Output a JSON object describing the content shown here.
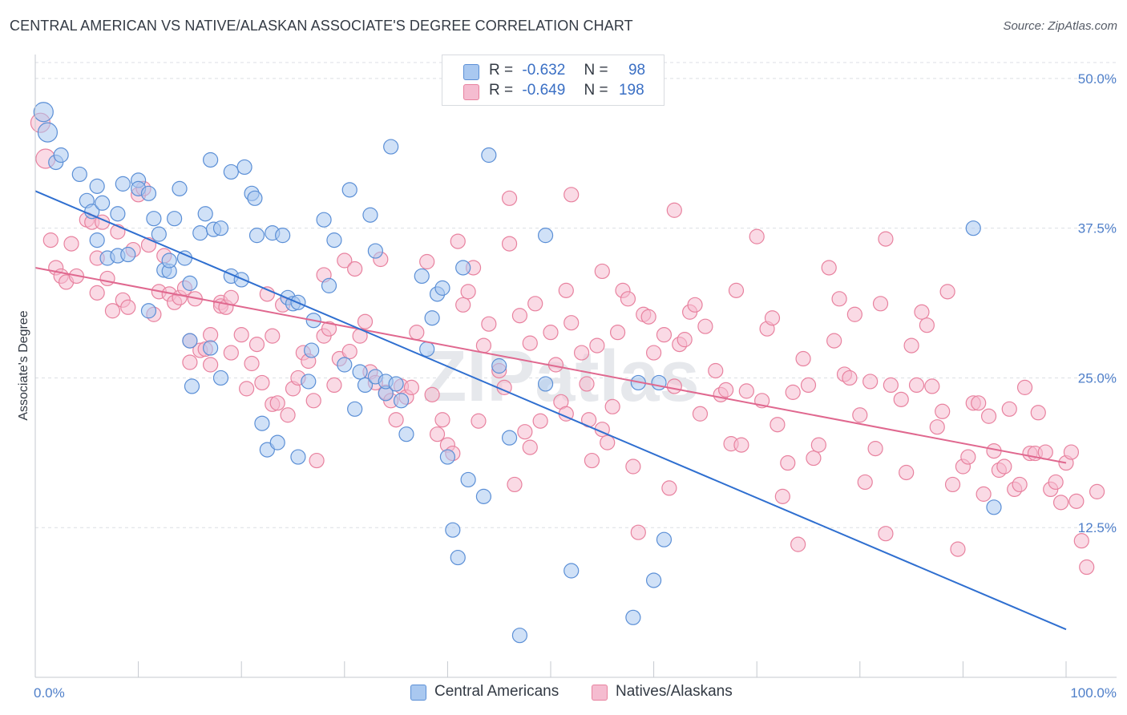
{
  "title": "CENTRAL AMERICAN VS NATIVE/ALASKAN ASSOCIATE'S DEGREE CORRELATION CHART",
  "source": "Source: ZipAtlas.com",
  "watermark": "ZIPatlas",
  "legend": {
    "r_label": "R =",
    "n_label": "N =",
    "series1_r": "-0.632",
    "series1_n": "98",
    "series2_r": "-0.649",
    "series2_n": "198"
  },
  "bottom_legend": {
    "series1": "Central Americans",
    "series2": "Natives/Alaskans"
  },
  "colors": {
    "blue_fill": "#a9c8f0",
    "blue_stroke": "#5b8fd6",
    "blue_line": "#2f6fd0",
    "pink_fill": "#f5bcd0",
    "pink_stroke": "#e8829f",
    "pink_line": "#e0688f",
    "grid": "#dcdfe4",
    "tick_text": "#4f7fc9"
  },
  "chart_data": {
    "type": "scatter",
    "title": "CENTRAL AMERICAN VS NATIVE/ALASKAN ASSOCIATE'S DEGREE CORRELATION CHART",
    "xlabel": "",
    "ylabel": "Associate's Degree",
    "xlim": [
      0,
      100
    ],
    "ylim": [
      0,
      52
    ],
    "x_tick_labels": [
      "0.0%",
      "100.0%"
    ],
    "y_ticks": [
      12.5,
      25.0,
      37.5,
      50.0
    ],
    "y_tick_labels": [
      "12.5%",
      "25.0%",
      "37.5%",
      "50.0%"
    ],
    "series": [
      {
        "name": "Central Americans",
        "r": -0.632,
        "n": 98,
        "trend": {
          "x": [
            0,
            100
          ],
          "y": [
            40.6,
            4.0
          ]
        },
        "points": [
          [
            0.8,
            47.2
          ],
          [
            1.2,
            45.5
          ],
          [
            2,
            43
          ],
          [
            2.5,
            43.6
          ],
          [
            4.3,
            42
          ],
          [
            5,
            39.8
          ],
          [
            5.5,
            38.9
          ],
          [
            6,
            41
          ],
          [
            6,
            36.5
          ],
          [
            6.5,
            39.6
          ],
          [
            7,
            35
          ],
          [
            8,
            35.2
          ],
          [
            8,
            38.7
          ],
          [
            8.5,
            41.2
          ],
          [
            9,
            35.3
          ],
          [
            10,
            41.5
          ],
          [
            10,
            40.8
          ],
          [
            11,
            30.6
          ],
          [
            11,
            40.4
          ],
          [
            11.5,
            38.3
          ],
          [
            12,
            37
          ],
          [
            12.5,
            34
          ],
          [
            13,
            33.9
          ],
          [
            13.5,
            38.3
          ],
          [
            13,
            34.8
          ],
          [
            14,
            40.8
          ],
          [
            15,
            32.9
          ],
          [
            14.5,
            35
          ],
          [
            15,
            28.1
          ],
          [
            15.2,
            24.3
          ],
          [
            16,
            37.1
          ],
          [
            17,
            43.2
          ],
          [
            16.5,
            38.7
          ],
          [
            17,
            27.5
          ],
          [
            17.3,
            37.4
          ],
          [
            18,
            37.5
          ],
          [
            18,
            25
          ],
          [
            19,
            33.5
          ],
          [
            19,
            42.2
          ],
          [
            20,
            33.2
          ],
          [
            20.3,
            42.6
          ],
          [
            21,
            40.4
          ],
          [
            21.3,
            40
          ],
          [
            21.5,
            36.9
          ],
          [
            22,
            21.2
          ],
          [
            22.5,
            19
          ],
          [
            23,
            37.1
          ],
          [
            23.5,
            19.6
          ],
          [
            24,
            36.9
          ],
          [
            24.5,
            31.7
          ],
          [
            25,
            31.2
          ],
          [
            25.5,
            18.4
          ],
          [
            25.5,
            31.3
          ],
          [
            26.5,
            24.7
          ],
          [
            26.8,
            27.3
          ],
          [
            27,
            29.8
          ],
          [
            28,
            38.2
          ],
          [
            29,
            36.5
          ],
          [
            28.5,
            32.7
          ],
          [
            30,
            26.1
          ],
          [
            30.5,
            40.7
          ],
          [
            31,
            22.4
          ],
          [
            31.5,
            25.5
          ],
          [
            32,
            24.4
          ],
          [
            32.5,
            38.6
          ],
          [
            33,
            25.1
          ],
          [
            33,
            35.6
          ],
          [
            34,
            23.7
          ],
          [
            34,
            24.7
          ],
          [
            34.5,
            44.3
          ],
          [
            35,
            24.5
          ],
          [
            35.5,
            23.1
          ],
          [
            36,
            20.3
          ],
          [
            37.5,
            33.5
          ],
          [
            38,
            27.4
          ],
          [
            38.5,
            30
          ],
          [
            39,
            32
          ],
          [
            39.5,
            32.5
          ],
          [
            40,
            18.4
          ],
          [
            40.5,
            12.3
          ],
          [
            41,
            10
          ],
          [
            41.5,
            34.2
          ],
          [
            42,
            16.5
          ],
          [
            43.5,
            15.1
          ],
          [
            44,
            43.6
          ],
          [
            45,
            26
          ],
          [
            46,
            20
          ],
          [
            47,
            3.5
          ],
          [
            49.5,
            24.5
          ],
          [
            49.5,
            36.9
          ],
          [
            52,
            8.9
          ],
          [
            58,
            5
          ],
          [
            60,
            8.1
          ],
          [
            61,
            11.5
          ],
          [
            60.5,
            24.6
          ],
          [
            91,
            37.5
          ],
          [
            93,
            14.2
          ],
          [
            58.5,
            24.6
          ]
        ]
      },
      {
        "name": "Natives/Alaskans",
        "r": -0.649,
        "n": 198,
        "trend": {
          "x": [
            0,
            100
          ],
          "y": [
            34.2,
            17.9
          ]
        },
        "points": [
          [
            0.5,
            46.3
          ],
          [
            1,
            43.3
          ],
          [
            1.5,
            36.5
          ],
          [
            2,
            34.2
          ],
          [
            2.5,
            33.5
          ],
          [
            3,
            33
          ],
          [
            3.5,
            36.2
          ],
          [
            4,
            33.5
          ],
          [
            5,
            38.2
          ],
          [
            5.5,
            38
          ],
          [
            6,
            35
          ],
          [
            6,
            32.1
          ],
          [
            6.5,
            38
          ],
          [
            7,
            33.3
          ],
          [
            7.5,
            30.6
          ],
          [
            8,
            37.2
          ],
          [
            8.5,
            31.5
          ],
          [
            9,
            30.9
          ],
          [
            9.5,
            35.7
          ],
          [
            10,
            40.3
          ],
          [
            10.5,
            40.8
          ],
          [
            11,
            36.1
          ],
          [
            11.5,
            30.3
          ],
          [
            12,
            32.2
          ],
          [
            12.5,
            35.2
          ],
          [
            13,
            32
          ],
          [
            13.5,
            31.3
          ],
          [
            14,
            31.7
          ],
          [
            14.5,
            32.5
          ],
          [
            15,
            28.1
          ],
          [
            15,
            26.3
          ],
          [
            15.5,
            31.6
          ],
          [
            16,
            27.3
          ],
          [
            16.5,
            27.4
          ],
          [
            17,
            28.6
          ],
          [
            17,
            26.1
          ],
          [
            18,
            31.3
          ],
          [
            18,
            31
          ],
          [
            18.5,
            30.9
          ],
          [
            19,
            31.7
          ],
          [
            19,
            27.1
          ],
          [
            20,
            28.6
          ],
          [
            20.5,
            24.1
          ],
          [
            21,
            26.2
          ],
          [
            21.5,
            27.8
          ],
          [
            22,
            24.6
          ],
          [
            22.5,
            32
          ],
          [
            23,
            28.5
          ],
          [
            23,
            22.8
          ],
          [
            23.5,
            22.9
          ],
          [
            24,
            31.1
          ],
          [
            24.5,
            21.9
          ],
          [
            25,
            24.1
          ],
          [
            25.5,
            25
          ],
          [
            26,
            27.1
          ],
          [
            26.5,
            26.4
          ],
          [
            27,
            23.1
          ],
          [
            27.3,
            18.1
          ],
          [
            28,
            33.6
          ],
          [
            28,
            28.5
          ],
          [
            28.5,
            29.1
          ],
          [
            29,
            24.4
          ],
          [
            29.5,
            26.6
          ],
          [
            30,
            34.8
          ],
          [
            30.5,
            27.2
          ],
          [
            31,
            34.1
          ],
          [
            31.5,
            28.5
          ],
          [
            32,
            29.7
          ],
          [
            32.5,
            25.5
          ],
          [
            33,
            24.6
          ],
          [
            33.5,
            34.9
          ],
          [
            34,
            23.8
          ],
          [
            34.5,
            23.1
          ],
          [
            35,
            21.5
          ],
          [
            35.5,
            24.3
          ],
          [
            36,
            23.4
          ],
          [
            36.5,
            24.2
          ],
          [
            37,
            28.8
          ],
          [
            38,
            34.7
          ],
          [
            38.5,
            23.6
          ],
          [
            39,
            20.3
          ],
          [
            39.5,
            21.5
          ],
          [
            40,
            19.4
          ],
          [
            40.5,
            18.7
          ],
          [
            41,
            36.4
          ],
          [
            41.5,
            31.1
          ],
          [
            42,
            32.2
          ],
          [
            42.5,
            34.2
          ],
          [
            43,
            21.4
          ],
          [
            43.5,
            27.7
          ],
          [
            44,
            29.5
          ],
          [
            45,
            25.6
          ],
          [
            45.5,
            24.2
          ],
          [
            46,
            36.2
          ],
          [
            46,
            40
          ],
          [
            46.5,
            16.1
          ],
          [
            47,
            30.2
          ],
          [
            47.5,
            20.5
          ],
          [
            48,
            19.2
          ],
          [
            48,
            27.9
          ],
          [
            48.5,
            31.2
          ],
          [
            49,
            21.4
          ],
          [
            50,
            28.8
          ],
          [
            50.5,
            26.1
          ],
          [
            51,
            23
          ],
          [
            51.5,
            22
          ],
          [
            51.5,
            32.3
          ],
          [
            52,
            40.3
          ],
          [
            52,
            29.6
          ],
          [
            53,
            27.1
          ],
          [
            53.5,
            24.5
          ],
          [
            53.7,
            21.5
          ],
          [
            54,
            18.1
          ],
          [
            54.5,
            27.7
          ],
          [
            55,
            33.9
          ],
          [
            55,
            20.7
          ],
          [
            55.5,
            19.6
          ],
          [
            56,
            22.6
          ],
          [
            56.5,
            28.8
          ],
          [
            57,
            32.3
          ],
          [
            57.5,
            31.6
          ],
          [
            58,
            17.6
          ],
          [
            58.5,
            12.1
          ],
          [
            59,
            30.3
          ],
          [
            59.5,
            30.1
          ],
          [
            60,
            27.1
          ],
          [
            61,
            28.6
          ],
          [
            61.5,
            15.8
          ],
          [
            62,
            39
          ],
          [
            62,
            24.3
          ],
          [
            62.5,
            27.8
          ],
          [
            63,
            28.2
          ],
          [
            63.5,
            30.5
          ],
          [
            64,
            31.1
          ],
          [
            64.5,
            22
          ],
          [
            65,
            29.3
          ],
          [
            66,
            25.6
          ],
          [
            66.5,
            23.6
          ],
          [
            67,
            24
          ],
          [
            67.5,
            19.5
          ],
          [
            68,
            32.3
          ],
          [
            68.5,
            19.4
          ],
          [
            69,
            23.9
          ],
          [
            70,
            36.8
          ],
          [
            70.5,
            23.1
          ],
          [
            71,
            29.1
          ],
          [
            71.5,
            30
          ],
          [
            72,
            21.1
          ],
          [
            72.5,
            15.1
          ],
          [
            73,
            17.9
          ],
          [
            73.5,
            23.8
          ],
          [
            74,
            11.1
          ],
          [
            74.5,
            26.6
          ],
          [
            75,
            24.4
          ],
          [
            75.5,
            18.3
          ],
          [
            76,
            19.4
          ],
          [
            77,
            34.2
          ],
          [
            77.5,
            28.1
          ],
          [
            78,
            31.6
          ],
          [
            78.5,
            25.3
          ],
          [
            79,
            25
          ],
          [
            79.5,
            30.3
          ],
          [
            80,
            21.9
          ],
          [
            80.5,
            16.3
          ],
          [
            81,
            24.7
          ],
          [
            81.5,
            19.1
          ],
          [
            82,
            31.2
          ],
          [
            82.5,
            12
          ],
          [
            82.5,
            36.6
          ],
          [
            83,
            24.4
          ],
          [
            84,
            23.2
          ],
          [
            84.5,
            17.1
          ],
          [
            85,
            27.7
          ],
          [
            85.5,
            24.4
          ],
          [
            86,
            30.5
          ],
          [
            86.5,
            29.4
          ],
          [
            87,
            24.3
          ],
          [
            87.5,
            20.9
          ],
          [
            88,
            22.2
          ],
          [
            88.5,
            32.2
          ],
          [
            89,
            16.1
          ],
          [
            89.5,
            10.7
          ],
          [
            90,
            17.6
          ],
          [
            90.5,
            18.4
          ],
          [
            91,
            22.9
          ],
          [
            91.5,
            22.9
          ],
          [
            92,
            15.3
          ],
          [
            92.5,
            21.8
          ],
          [
            93,
            18.9
          ],
          [
            93.5,
            17.3
          ],
          [
            94,
            17.6
          ],
          [
            94.5,
            22.4
          ],
          [
            95,
            15.7
          ],
          [
            95.5,
            16.1
          ],
          [
            96,
            24.2
          ],
          [
            96.5,
            18.7
          ],
          [
            97,
            18.7
          ],
          [
            97.3,
            22.1
          ],
          [
            98,
            18.8
          ],
          [
            98.5,
            15.7
          ],
          [
            99,
            16.3
          ],
          [
            99.5,
            14.6
          ],
          [
            100,
            17.9
          ],
          [
            100.5,
            18.8
          ],
          [
            101,
            14.7
          ],
          [
            101.5,
            11.4
          ],
          [
            102,
            9.2
          ],
          [
            103,
            15.5
          ]
        ]
      }
    ]
  }
}
